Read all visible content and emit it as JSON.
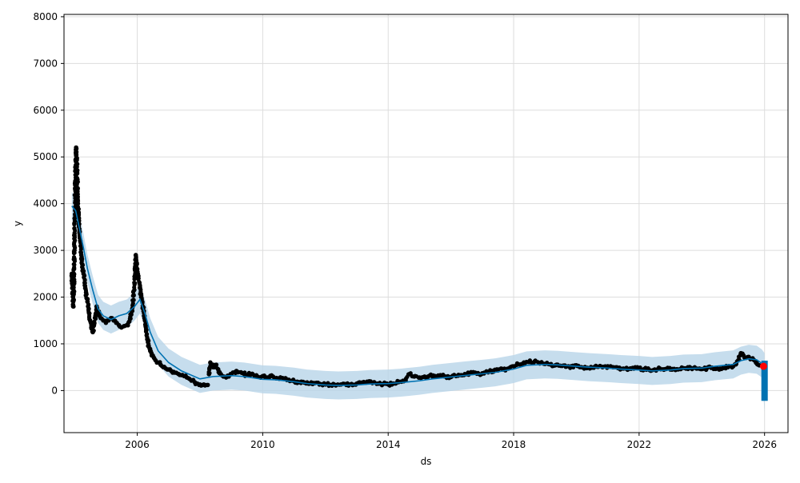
{
  "chart_data": {
    "type": "line",
    "title": "",
    "xlabel": "ds",
    "ylabel": "y",
    "xlim": [
      "2003-09-01",
      "2026-10-01"
    ],
    "ylim": [
      -900,
      8050
    ],
    "x_ticks": [
      "2006",
      "2010",
      "2014",
      "2018",
      "2022",
      "2026"
    ],
    "y_ticks": [
      0,
      1000,
      2000,
      3000,
      4000,
      5000,
      6000,
      7000,
      8000
    ],
    "grid": true,
    "legend": "none",
    "colors": {
      "observed": "#000000",
      "forecast_line": "#0072B2",
      "uncertainty_band": "#b8d4e8",
      "highlight": "#ff0000",
      "grid": "#dddddd"
    },
    "series": [
      {
        "kind": "forecast",
        "x": [
          "2003-12-01",
          "2004-01-15",
          "2004-03-01",
          "2004-04-15",
          "2004-06-01",
          "2004-08-01",
          "2004-10-01",
          "2004-12-01",
          "2005-03-01",
          "2005-06-01",
          "2005-09-01",
          "2005-12-01",
          "2006-02-01",
          "2006-04-01",
          "2006-06-01",
          "2006-09-01",
          "2007-01-01",
          "2007-06-01",
          "2008-01-01",
          "2008-06-01",
          "2009-01-01",
          "2009-06-01",
          "2010-01-01",
          "2010-06-01",
          "2011-01-01",
          "2011-06-01",
          "2012-01-01",
          "2012-06-01",
          "2013-01-01",
          "2013-06-01",
          "2014-01-01",
          "2014-06-01",
          "2015-01-01",
          "2015-06-01",
          "2016-01-01",
          "2016-06-01",
          "2017-01-01",
          "2017-06-01",
          "2018-01-01",
          "2018-06-01",
          "2019-01-01",
          "2019-06-01",
          "2020-01-01",
          "2020-06-01",
          "2021-01-01",
          "2021-06-01",
          "2022-01-01",
          "2022-06-01",
          "2023-01-01",
          "2023-06-01",
          "2024-01-01",
          "2024-06-01",
          "2025-01-01",
          "2025-04-01",
          "2025-07-01",
          "2025-10-01",
          "2025-12-01",
          "2026-01-01"
        ],
        "y": [
          3950,
          3850,
          3450,
          3050,
          2600,
          2150,
          1750,
          1600,
          1520,
          1600,
          1650,
          1800,
          1950,
          1650,
          1250,
          850,
          600,
          420,
          250,
          300,
          320,
          300,
          240,
          230,
          190,
          150,
          120,
          110,
          120,
          140,
          150,
          170,
          210,
          250,
          290,
          320,
          360,
          390,
          460,
          540,
          560,
          550,
          520,
          500,
          480,
          460,
          440,
          420,
          440,
          470,
          480,
          520,
          560,
          640,
          680,
          660,
          580,
          480
        ],
        "lower": [
          3650,
          3550,
          3150,
          2750,
          2300,
          1850,
          1450,
          1300,
          1220,
          1300,
          1350,
          1500,
          1650,
          1350,
          950,
          550,
          300,
          120,
          -50,
          0,
          20,
          0,
          -60,
          -70,
          -110,
          -150,
          -180,
          -190,
          -180,
          -160,
          -150,
          -130,
          -90,
          -50,
          -10,
          20,
          60,
          90,
          160,
          240,
          260,
          250,
          220,
          200,
          180,
          160,
          140,
          120,
          140,
          170,
          180,
          220,
          260,
          340,
          380,
          360,
          280,
          -450
        ],
        "upper": [
          4250,
          4150,
          3750,
          3350,
          2900,
          2450,
          2050,
          1900,
          1820,
          1900,
          1950,
          2100,
          2250,
          1950,
          1550,
          1150,
          900,
          720,
          550,
          600,
          620,
          600,
          540,
          530,
          490,
          450,
          420,
          410,
          420,
          440,
          450,
          470,
          510,
          550,
          590,
          620,
          660,
          690,
          760,
          840,
          860,
          850,
          820,
          800,
          780,
          760,
          740,
          720,
          740,
          770,
          780,
          820,
          860,
          940,
          980,
          960,
          880,
          800
        ]
      },
      {
        "kind": "observed",
        "segments": [
          {
            "x": [
              "2003-12-01",
              "2003-12-10",
              "2003-12-20",
              "2004-01-01",
              "2004-01-10",
              "2004-01-20",
              "2004-02-01",
              "2004-02-10",
              "2004-02-20",
              "2004-03-01",
              "2004-03-10",
              "2004-03-20",
              "2004-04-01",
              "2004-04-15",
              "2004-05-01",
              "2004-05-15",
              "2004-06-01",
              "2004-06-15",
              "2004-07-01",
              "2004-07-15",
              "2004-08-01",
              "2004-08-15",
              "2004-09-01",
              "2004-09-15",
              "2004-10-01",
              "2004-10-15",
              "2004-11-01",
              "2004-12-01",
              "2005-01-01",
              "2005-02-01",
              "2005-03-01",
              "2005-04-01",
              "2005-05-01",
              "2005-06-01",
              "2005-07-01",
              "2005-08-01",
              "2005-09-01",
              "2005-10-01",
              "2005-11-01",
              "2005-12-01",
              "2005-12-15",
              "2006-01-01",
              "2006-01-15",
              "2006-02-01",
              "2006-02-15",
              "2006-03-01",
              "2006-03-15",
              "2006-04-01",
              "2006-04-15",
              "2006-05-01",
              "2006-05-15",
              "2006-06-01",
              "2006-06-15",
              "2006-07-01",
              "2006-07-15",
              "2006-08-01",
              "2006-09-01",
              "2006-10-01",
              "2006-11-01",
              "2006-12-01",
              "2007-01-01",
              "2007-02-01",
              "2007-03-01",
              "2007-04-01",
              "2007-05-01",
              "2007-06-01",
              "2007-07-01",
              "2007-08-01",
              "2007-09-01",
              "2007-10-01",
              "2007-11-01",
              "2007-12-01",
              "2008-01-01",
              "2008-02-01",
              "2008-03-01",
              "2008-04-01"
            ],
            "y": [
              2500,
              2100,
              1800,
              3000,
              4300,
              5200,
              4700,
              4000,
              3700,
              3400,
              3200,
              2900,
              2700,
              2500,
              2300,
              2100,
              1900,
              1750,
              1500,
              1350,
              1250,
              1400,
              1600,
              1800,
              1700,
              1600,
              1550,
              1500,
              1450,
              1500,
              1550,
              1500,
              1450,
              1400,
              1350,
              1380,
              1400,
              1480,
              1700,
              2300,
              2900,
              2600,
              2400,
              2200,
              2000,
              1900,
              1700,
              1500,
              1300,
              1100,
              950,
              850,
              800,
              750,
              700,
              650,
              600,
              550,
              500,
              470,
              450,
              420,
              400,
              380,
              350,
              330,
              310,
              280,
              250,
              220,
              180,
              150,
              130,
              120,
              110,
              120
            ]
          },
          {
            "x": [
              "2008-04-15",
              "2008-05-01",
              "2008-06-01",
              "2008-07-01",
              "2008-08-01",
              "2008-09-01",
              "2008-10-01",
              "2008-11-01",
              "2008-12-01",
              "2009-01-01",
              "2009-03-01",
              "2009-05-01",
              "2009-07-01",
              "2009-09-01",
              "2009-11-01",
              "2010-01-01",
              "2010-03-01",
              "2010-05-01",
              "2010-07-01",
              "2010-09-01",
              "2010-11-01",
              "2011-01-01",
              "2011-03-01",
              "2011-05-01",
              "2011-07-01",
              "2011-09-01",
              "2011-11-01",
              "2012-01-01",
              "2012-03-01",
              "2012-05-01",
              "2012-07-01",
              "2012-09-01",
              "2012-11-01",
              "2013-01-01",
              "2013-03-01",
              "2013-05-01",
              "2013-07-01",
              "2013-09-01",
              "2013-11-01",
              "2014-01-01",
              "2014-03-01",
              "2014-05-01",
              "2014-07-01",
              "2014-09-01",
              "2014-11-01",
              "2015-01-01",
              "2015-03-01",
              "2015-05-01",
              "2015-07-01",
              "2015-09-01",
              "2015-11-01",
              "2016-01-01",
              "2016-03-01",
              "2016-05-01",
              "2016-07-01",
              "2016-09-01",
              "2016-11-01",
              "2017-01-01",
              "2017-03-01",
              "2017-05-01",
              "2017-07-01",
              "2017-09-01",
              "2017-11-01",
              "2018-01-01",
              "2018-03-01",
              "2018-05-01",
              "2018-07-01",
              "2018-09-01",
              "2018-11-01",
              "2019-01-01",
              "2019-03-01",
              "2019-05-01",
              "2019-07-01",
              "2019-09-01",
              "2019-11-01",
              "2020-01-01",
              "2020-03-01",
              "2020-05-01",
              "2020-07-01",
              "2020-09-01",
              "2020-11-01",
              "2021-01-01",
              "2021-03-01",
              "2021-05-01",
              "2021-07-01",
              "2021-09-01",
              "2021-11-01",
              "2022-01-01",
              "2022-03-01",
              "2022-05-01",
              "2022-07-01",
              "2022-09-01",
              "2022-11-01",
              "2023-01-01",
              "2023-03-01",
              "2023-05-01",
              "2023-07-01",
              "2023-09-01",
              "2023-11-01",
              "2024-01-01",
              "2024-03-01",
              "2024-05-01",
              "2024-07-01",
              "2024-09-01",
              "2024-11-01",
              "2025-01-01",
              "2025-02-01",
              "2025-03-01",
              "2025-04-01",
              "2025-05-01",
              "2025-06-01",
              "2025-07-01",
              "2025-08-01",
              "2025-09-01",
              "2025-10-01",
              "2025-11-01"
            ],
            "y": [
              350,
              600,
              500,
              550,
              450,
              350,
              300,
              280,
              300,
              350,
              420,
              380,
              330,
              360,
              300,
              310,
              280,
              300,
              260,
              250,
              230,
              200,
              180,
              170,
              150,
              160,
              140,
              130,
              120,
              110,
              130,
              120,
              140,
              150,
              170,
              190,
              160,
              150,
              140,
              130,
              150,
              180,
              200,
              350,
              300,
              280,
              300,
              320,
              310,
              330,
              300,
              290,
              310,
              330,
              350,
              380,
              360,
              370,
              400,
              420,
              430,
              450,
              470,
              520,
              560,
              600,
              610,
              620,
              580,
              570,
              560,
              540,
              530,
              510,
              520,
              540,
              500,
              480,
              490,
              510,
              500,
              520,
              500,
              480,
              470,
              460,
              470,
              480,
              460,
              440,
              450,
              470,
              460,
              450,
              440,
              460,
              470,
              480,
              470,
              460,
              480,
              490,
              470,
              480,
              500,
              520,
              560,
              650,
              800,
              750,
              700,
              720,
              680,
              650,
              600,
              540
            ]
          }
        ]
      },
      {
        "kind": "highlight",
        "x": [
          "2025-12-20"
        ],
        "y": [
          520
        ]
      }
    ]
  }
}
